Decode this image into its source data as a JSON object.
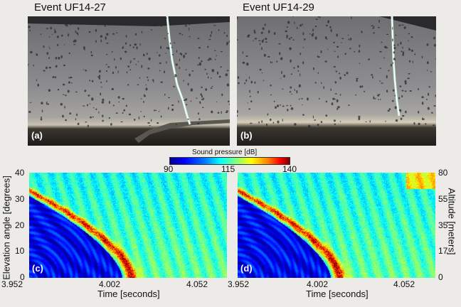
{
  "figure": {
    "events": [
      {
        "title": "Event UF14-27",
        "panel": "(a)"
      },
      {
        "title": "Event UF14-29",
        "panel": "(b)"
      }
    ],
    "spectrograms": [
      {
        "panel": "(c)"
      },
      {
        "panel": "(d)"
      }
    ],
    "colorbar": {
      "title": "Sound pressure [dB]",
      "ticks": [
        "90",
        "115",
        "140"
      ],
      "colormap": "jet"
    }
  },
  "chart_data": [
    {
      "type": "heatmap",
      "title": "",
      "xlabel": "Time [seconds]",
      "ylabel": "Elevation angle [degrees]",
      "xticks": [
        "3.952",
        "4.002",
        "4.052"
      ],
      "yticks": [
        "0",
        "10",
        "20",
        "30",
        "40"
      ],
      "xlim": [
        3.952,
        4.077
      ],
      "ylim": [
        0,
        40
      ],
      "colorbar_range": [
        90,
        140
      ]
    },
    {
      "type": "heatmap",
      "title": "",
      "xlabel": "Time [seconds]",
      "ylabel": "Altitude [meters]",
      "xticks": [
        "3.952",
        "4.002",
        "4.052"
      ],
      "yticks": [
        "0",
        "17",
        "35",
        "55",
        "80"
      ],
      "xlim": [
        3.952,
        4.077
      ],
      "ylim": [
        0,
        80
      ],
      "colorbar_range": [
        90,
        140
      ]
    }
  ]
}
